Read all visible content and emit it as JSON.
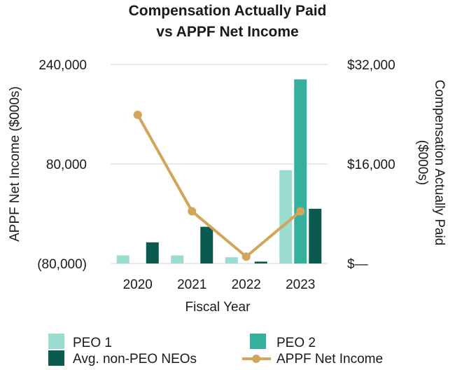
{
  "chart_data": {
    "type": "bar",
    "title_lines": [
      "Compensation Actually Paid",
      "vs APPF Net Income"
    ],
    "categories": [
      "2020",
      "2021",
      "2022",
      "2023"
    ],
    "xlabel": "Fiscal Year",
    "ylabel_left": "APPF Net Income ($000s)",
    "ylabel_right_lines": [
      "Compensation Actually Paid",
      "($000s)"
    ],
    "left_axis": {
      "ylim": [
        -80000,
        240000
      ],
      "ticks": [
        -80000,
        80000,
        240000
      ],
      "tick_labels": [
        "(80,000)",
        "80,000",
        "240,000"
      ]
    },
    "right_axis": {
      "ylim": [
        0,
        32000
      ],
      "ticks": [
        0,
        16000,
        32000
      ],
      "tick_labels": [
        "$—",
        "$16,000",
        "$32,000"
      ]
    },
    "grid": true,
    "bar_series": [
      {
        "name": "PEO 1",
        "axis": "right",
        "color": "#9adccf",
        "values": [
          1300,
          1300,
          1000,
          15000
        ]
      },
      {
        "name": "PEO 2",
        "axis": "right",
        "color": "#34b09d",
        "values": [
          0,
          0,
          0,
          29600
        ]
      },
      {
        "name": "Avg. non-PEO NEOs",
        "axis": "right",
        "color": "#0b5a50",
        "values": [
          3400,
          5900,
          300,
          8800
        ]
      }
    ],
    "line_series": [
      {
        "name": "APPF Net  Income",
        "axis": "left",
        "color": "#d3a55a",
        "values": [
          159000,
          4000,
          -69000,
          4000
        ]
      }
    ],
    "legend": {
      "placement": "bottom",
      "items": [
        {
          "label": "PEO 1",
          "kind": "bar",
          "color": "#9adccf"
        },
        {
          "label": "PEO 2",
          "kind": "bar",
          "color": "#34b09d"
        },
        {
          "label": "Avg. non-PEO NEOs",
          "kind": "bar",
          "color": "#0b5a50"
        },
        {
          "label": "APPF Net  Income",
          "kind": "line",
          "color": "#d3a55a"
        }
      ]
    }
  }
}
